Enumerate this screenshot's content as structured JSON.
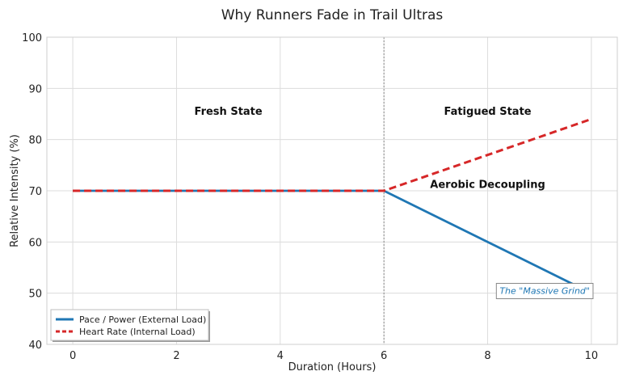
{
  "chart_data": {
    "type": "line",
    "title": "Why Runners Fade in Trail Ultras",
    "xlabel": "Duration (Hours)",
    "ylabel": "Relative Intensity (%)",
    "xlim": [
      -0.5,
      10.5
    ],
    "ylim": [
      40,
      100
    ],
    "xticks": [
      0,
      2,
      4,
      6,
      8,
      10
    ],
    "yticks": [
      40,
      50,
      60,
      70,
      80,
      90,
      100
    ],
    "grid": true,
    "legend_position": "lower-left",
    "series": [
      {
        "name": "Pace / Power (External Load)",
        "color": "#1f77b4",
        "style": "solid",
        "x": [
          0,
          6,
          10
        ],
        "y": [
          70,
          70,
          50
        ]
      },
      {
        "name": "Heart Rate (Internal Load)",
        "color": "#d62728",
        "style": "dashed",
        "x": [
          0,
          6,
          10
        ],
        "y": [
          70,
          70,
          84
        ]
      }
    ],
    "vline": {
      "x": 6,
      "style": "dotted",
      "color": "#888888"
    },
    "annotations": [
      {
        "text": "Fresh State",
        "x": 3,
        "y": 85.5,
        "style": "bold",
        "color": "#111111"
      },
      {
        "text": "Fatigued State",
        "x": 8,
        "y": 85.5,
        "style": "bold",
        "color": "#111111"
      },
      {
        "text": "Aerobic Decoupling",
        "x": 8,
        "y": 71.2,
        "style": "bold",
        "color": "#111111"
      },
      {
        "text": "The \"Massive Grind\"",
        "x": 9.1,
        "y": 50.5,
        "style": "italic-boxed",
        "color": "#1f77b4"
      }
    ]
  }
}
